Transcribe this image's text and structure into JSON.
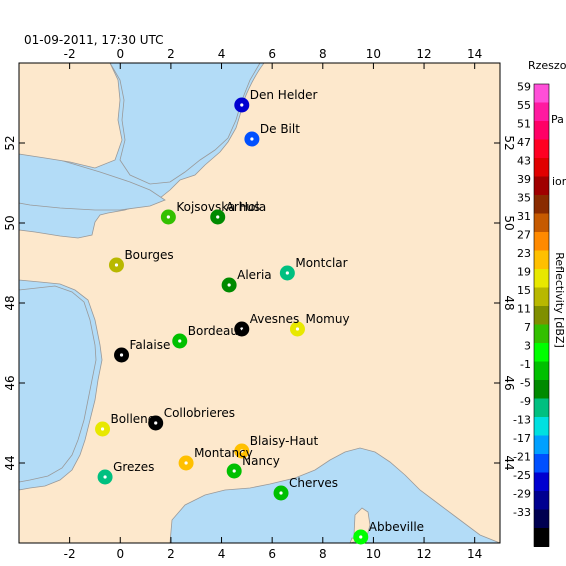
{
  "timestamp": "01-09-2011, 17:30 UTC",
  "map": {
    "lon_ticks": [
      -2,
      0,
      2,
      4,
      6,
      8,
      10,
      12,
      14
    ],
    "lat_ticks": [
      44,
      46,
      48,
      50,
      52
    ],
    "lon_range": [
      -4,
      15
    ],
    "lat_range": [
      42,
      54
    ],
    "land_color": "#fde8cc",
    "sea_color": "#b3dcf7"
  },
  "colorbar": {
    "title": "Reflectivity [dBZ]",
    "levels": [
      59,
      55,
      51,
      47,
      43,
      39,
      35,
      31,
      27,
      23,
      19,
      15,
      11,
      7,
      3,
      -1,
      -5,
      -9,
      -13,
      -17,
      -21,
      -25,
      -29,
      -33
    ],
    "colors": [
      "#ff4fd8",
      "#ff1aa0",
      "#ff0066",
      "#ff0022",
      "#e00000",
      "#a00000",
      "#8a2b00",
      "#c65a00",
      "#ff8a00",
      "#ffc000",
      "#e8e800",
      "#b8b800",
      "#7f8f00",
      "#33c000",
      "#00ff00",
      "#00c000",
      "#008a00",
      "#00c080",
      "#00e0e0",
      "#00a0ff",
      "#0050ff",
      "#0000d0",
      "#000090",
      "#000050",
      "#000000"
    ]
  },
  "edge_labels": [
    {
      "id": "rzeszo",
      "text": "Rzeszo"
    },
    {
      "id": "pa",
      "text": "Pa"
    },
    {
      "id": "ion",
      "text": "ion"
    }
  ],
  "stations": [
    {
      "name": "Den Helder",
      "lon": 4.8,
      "lat": 52.95,
      "color": "#0000d0"
    },
    {
      "name": "De Bilt",
      "lon": 5.2,
      "lat": 52.1,
      "color": "#0050ff"
    },
    {
      "name": "Kojsovska Hola",
      "lon": 1.9,
      "lat": 50.15,
      "color": "#33c000"
    },
    {
      "name": "Arhus",
      "lon": 3.85,
      "lat": 50.15,
      "color": "#008a00"
    },
    {
      "name": "Bourges",
      "lon": -0.15,
      "lat": 48.95,
      "color": "#b8b800"
    },
    {
      "name": "Montclar",
      "lon": 6.6,
      "lat": 48.75,
      "color": "#00c080"
    },
    {
      "name": "Aleria",
      "lon": 4.3,
      "lat": 48.45,
      "color": "#008a00"
    },
    {
      "name": "Momuy",
      "lon": 7.0,
      "lat": 47.35,
      "color": "#e8e800"
    },
    {
      "name": "Avesnes",
      "lon": 4.8,
      "lat": 47.35,
      "color": "#000000"
    },
    {
      "name": "Bordeaux",
      "lon": 2.35,
      "lat": 47.05,
      "color": "#00c000"
    },
    {
      "name": "Falaise",
      "lon": 0.05,
      "lat": 46.7,
      "color": "#000000"
    },
    {
      "name": "Collobrieres",
      "lon": 1.4,
      "lat": 45.0,
      "color": "#000000"
    },
    {
      "name": "Bollene",
      "lon": -0.7,
      "lat": 44.85,
      "color": "#e8e800"
    },
    {
      "name": "Blaisy-Haut",
      "lon": 4.8,
      "lat": 44.3,
      "color": "#ffc000"
    },
    {
      "name": "Montancy",
      "lon": 2.6,
      "lat": 44.0,
      "color": "#ffc000"
    },
    {
      "name": "Nancy",
      "lon": 4.5,
      "lat": 43.8,
      "color": "#00c000"
    },
    {
      "name": "Grezes",
      "lon": -0.6,
      "lat": 43.65,
      "color": "#00c080"
    },
    {
      "name": "Cherves",
      "lon": 6.35,
      "lat": 43.25,
      "color": "#00c000"
    },
    {
      "name": "Abbeville",
      "lon": 9.5,
      "lat": 42.15,
      "color": "#00ff00"
    }
  ]
}
